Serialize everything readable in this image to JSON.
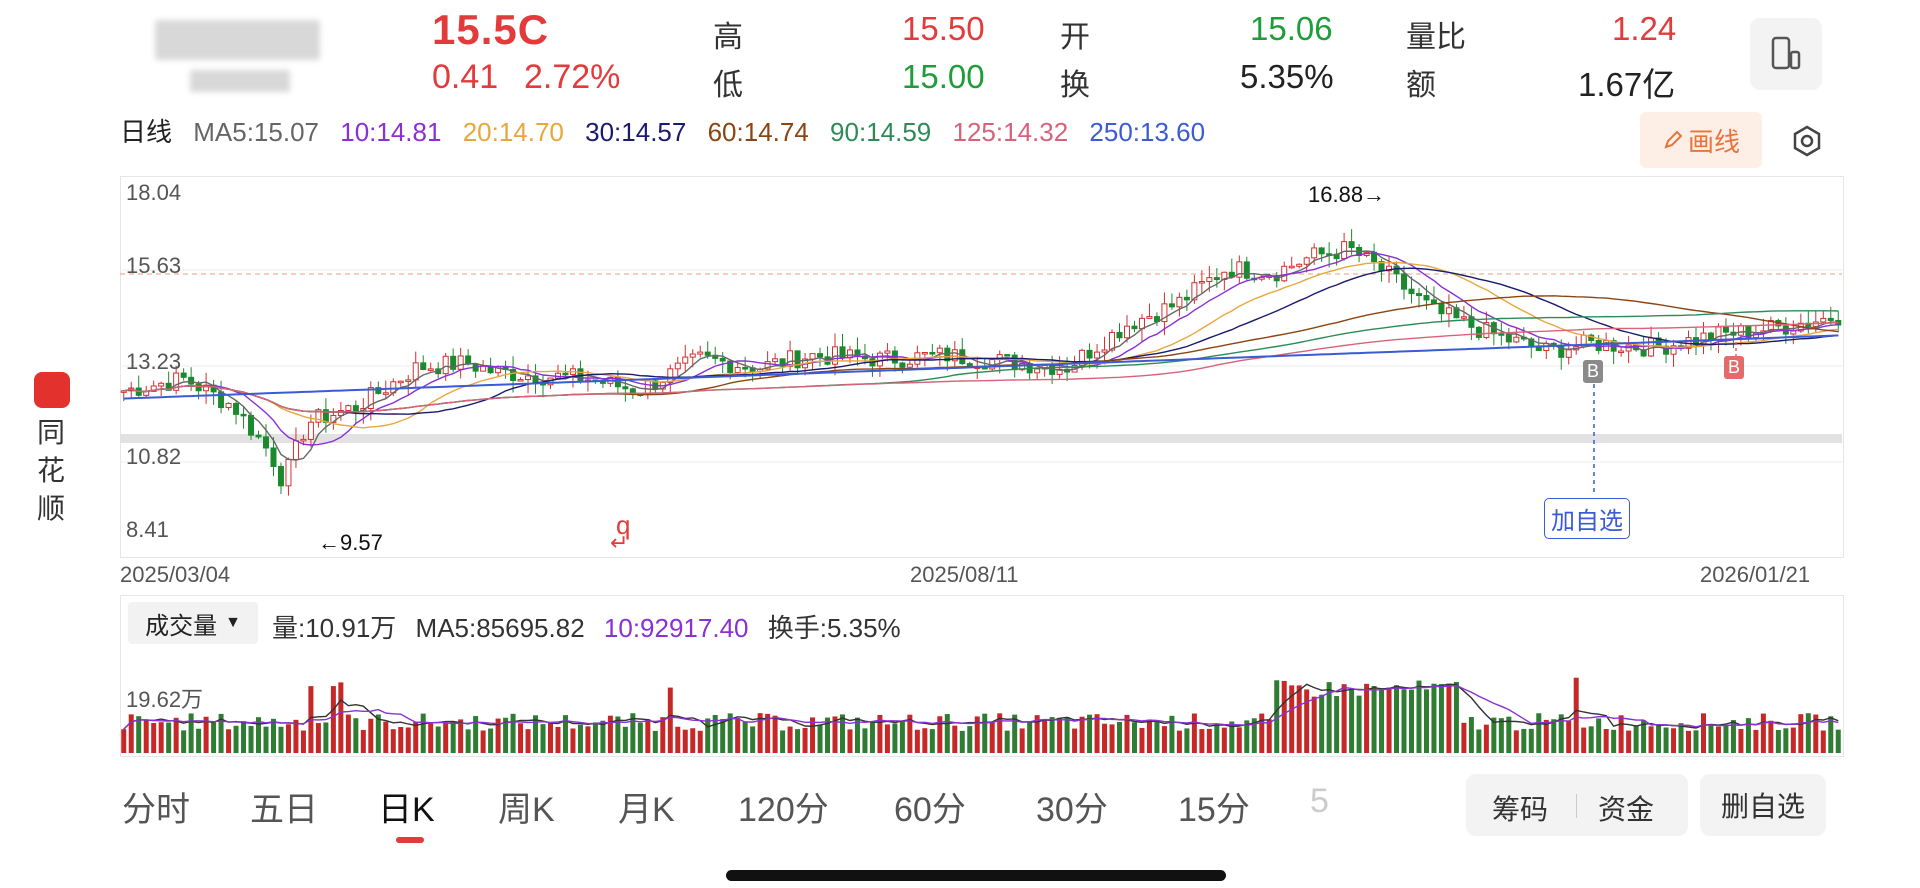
{
  "header": {
    "price": "15.5C",
    "change": "0.41",
    "change_pct": "2.72%",
    "quote": [
      {
        "label": "高",
        "value": "15.50",
        "color": "#e23b3b"
      },
      {
        "label": "开",
        "value": "15.06",
        "color": "#1f9d3a"
      },
      {
        "label": "量比",
        "value": "1.24",
        "color": "#e23b3b"
      },
      {
        "label": "低",
        "value": "15.00",
        "color": "#1f9d3a"
      },
      {
        "label": "换",
        "value": "5.35%",
        "color": "#222222"
      },
      {
        "label": "额",
        "value": "1.67亿",
        "color": "#222222"
      }
    ],
    "phone_icon": "phone-icon"
  },
  "ma": {
    "period": "日线",
    "items": [
      {
        "text": "MA5:15.07",
        "color": "#666666"
      },
      {
        "text": "10:14.81",
        "color": "#8b2fd6"
      },
      {
        "text": "20:14.70",
        "color": "#e8a73b"
      },
      {
        "text": "30:14.57",
        "color": "#1a1a6e"
      },
      {
        "text": "60:14.74",
        "color": "#8b4513"
      },
      {
        "text": "90:14.59",
        "color": "#2e8b57"
      },
      {
        "text": "125:14.32",
        "color": "#d9627a"
      },
      {
        "text": "250:13.60",
        "color": "#3b5bd6"
      }
    ],
    "draw_label": "画线"
  },
  "chart": {
    "y_labels": [
      "18.04",
      "15.63",
      "13.23",
      "10.82",
      "8.41"
    ],
    "high_annot": "16.88→",
    "low_annot": "←9.57",
    "dates": [
      "2025/03/04",
      "2025/08/11",
      "2026/01/21"
    ],
    "add_watch": "加自选",
    "buy_marks": [
      "B",
      "B"
    ],
    "q_mark": "q"
  },
  "chart_data": {
    "type": "candlestick",
    "y_range": [
      8.41,
      18.04
    ],
    "x_range": [
      "2025/03/04",
      "2026/01/21"
    ],
    "high": {
      "value": 16.88
    },
    "low": {
      "value": 9.57
    },
    "ma": {
      "MA5": 15.07,
      "MA10": 14.81,
      "MA20": 14.7,
      "MA30": 14.57,
      "MA60": 14.74,
      "MA90": 14.59,
      "MA125": 14.32,
      "MA250": 13.6
    }
  },
  "volume": {
    "selector": "成交量",
    "items": [
      {
        "text": "量:10.91万",
        "color": "#333333"
      },
      {
        "text": "MA5:85695.82",
        "color": "#333333"
      },
      {
        "text": "10:92917.40",
        "color": "#8b2fd6"
      },
      {
        "text": "换手:5.35%",
        "color": "#333333"
      }
    ],
    "y_label": "19.62万"
  },
  "sidebar": {
    "app_name": "同花顺"
  },
  "tabs": [
    "分时",
    "五日",
    "日K",
    "周K",
    "月K",
    "120分",
    "60分",
    "30分",
    "15分",
    "5"
  ],
  "active_tab": "日K",
  "actions": {
    "chips": "筹码",
    "funds": "资金",
    "remove_watch": "删自选"
  }
}
